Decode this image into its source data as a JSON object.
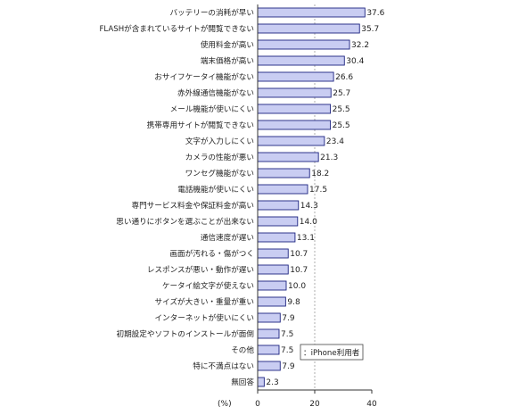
{
  "chart_data": {
    "type": "bar",
    "orientation": "horizontal",
    "categories": [
      "バッテリーの消耗が早い",
      "FLASHが含まれているサイトが閲覧できない",
      "使用料金が高い",
      "端末価格が高い",
      "おサイフケータイ機能がない",
      "赤外線通信機能がない",
      "メール機能が使いにくい",
      "携帯専用サイトが閲覧できない",
      "文字が入力しにくい",
      "カメラの性能が悪い",
      "ワンセグ機能がない",
      "電話機能が使いにくい",
      "専門サービス料金や保証料金が高い",
      "思い通りにボタンを選ぶことが出来ない",
      "通信速度が遅い",
      "画面が汚れる・傷がつく",
      "レスポンスが悪い・動作が遅い",
      "ケータイ絵文字が使えない",
      "サイズが大きい・重量が重い",
      "インターネットが使いにくい",
      "初期設定やソフトのインストールが面倒",
      "その他",
      "特に不満点はない",
      "無回答"
    ],
    "series": [
      {
        "name": "iPhone利用者",
        "values": [
          37.6,
          35.7,
          32.2,
          30.4,
          26.6,
          25.7,
          25.5,
          25.5,
          23.4,
          21.3,
          18.2,
          17.5,
          14.3,
          14.0,
          13.1,
          10.7,
          10.7,
          10.0,
          9.8,
          7.9,
          7.5,
          7.5,
          7.9,
          2.3
        ]
      }
    ],
    "value_labels": [
      "37.6",
      "35.7",
      "32.2",
      "30.4",
      "26.6",
      "25.7",
      "25.5",
      "25.5",
      "23.4",
      "21.3",
      "18.2",
      "17.5",
      "14.3",
      "14.0",
      "13.1",
      "10.7",
      "10.7",
      "10.0",
      "9.8",
      "7.9",
      "7.5",
      "7.5",
      "7.9",
      "2.3"
    ],
    "xlim": [
      0,
      40
    ],
    "xticks": [
      "0",
      "20",
      "40"
    ],
    "unit_label": "(%)",
    "legend": {
      "label": "：iPhone利用者",
      "placement": "bottom-right"
    },
    "grid": {
      "reference_line_at": 20,
      "style": "dashed"
    },
    "colors": {
      "bar_fill": "#c9cdf2",
      "bar_stroke": "#1c2380",
      "axis": "#333333",
      "gridline": "#9a9a9a"
    }
  }
}
